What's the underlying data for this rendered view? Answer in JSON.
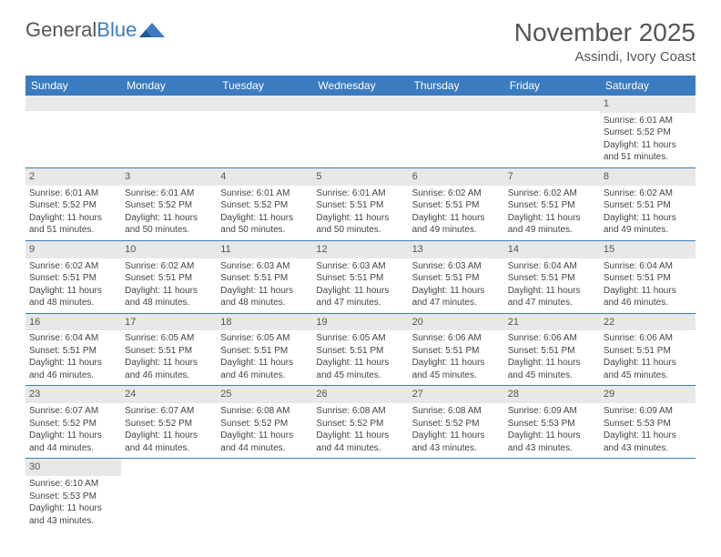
{
  "logo": {
    "text1": "General",
    "text2": "Blue"
  },
  "header": {
    "month_title": "November 2025",
    "location": "Assindi, Ivory Coast"
  },
  "colors": {
    "header_bg": "#3b7bbf",
    "header_text": "#ffffff",
    "day_number_bg": "#e8e8e8",
    "border": "#3b7bbf",
    "text": "#444444",
    "title": "#555555"
  },
  "weekdays": [
    "Sunday",
    "Monday",
    "Tuesday",
    "Wednesday",
    "Thursday",
    "Friday",
    "Saturday"
  ],
  "weeks": [
    [
      null,
      null,
      null,
      null,
      null,
      null,
      {
        "day": "1",
        "sunrise": "Sunrise: 6:01 AM",
        "sunset": "Sunset: 5:52 PM",
        "daylight": "Daylight: 11 hours and 51 minutes."
      }
    ],
    [
      {
        "day": "2",
        "sunrise": "Sunrise: 6:01 AM",
        "sunset": "Sunset: 5:52 PM",
        "daylight": "Daylight: 11 hours and 51 minutes."
      },
      {
        "day": "3",
        "sunrise": "Sunrise: 6:01 AM",
        "sunset": "Sunset: 5:52 PM",
        "daylight": "Daylight: 11 hours and 50 minutes."
      },
      {
        "day": "4",
        "sunrise": "Sunrise: 6:01 AM",
        "sunset": "Sunset: 5:52 PM",
        "daylight": "Daylight: 11 hours and 50 minutes."
      },
      {
        "day": "5",
        "sunrise": "Sunrise: 6:01 AM",
        "sunset": "Sunset: 5:51 PM",
        "daylight": "Daylight: 11 hours and 50 minutes."
      },
      {
        "day": "6",
        "sunrise": "Sunrise: 6:02 AM",
        "sunset": "Sunset: 5:51 PM",
        "daylight": "Daylight: 11 hours and 49 minutes."
      },
      {
        "day": "7",
        "sunrise": "Sunrise: 6:02 AM",
        "sunset": "Sunset: 5:51 PM",
        "daylight": "Daylight: 11 hours and 49 minutes."
      },
      {
        "day": "8",
        "sunrise": "Sunrise: 6:02 AM",
        "sunset": "Sunset: 5:51 PM",
        "daylight": "Daylight: 11 hours and 49 minutes."
      }
    ],
    [
      {
        "day": "9",
        "sunrise": "Sunrise: 6:02 AM",
        "sunset": "Sunset: 5:51 PM",
        "daylight": "Daylight: 11 hours and 48 minutes."
      },
      {
        "day": "10",
        "sunrise": "Sunrise: 6:02 AM",
        "sunset": "Sunset: 5:51 PM",
        "daylight": "Daylight: 11 hours and 48 minutes."
      },
      {
        "day": "11",
        "sunrise": "Sunrise: 6:03 AM",
        "sunset": "Sunset: 5:51 PM",
        "daylight": "Daylight: 11 hours and 48 minutes."
      },
      {
        "day": "12",
        "sunrise": "Sunrise: 6:03 AM",
        "sunset": "Sunset: 5:51 PM",
        "daylight": "Daylight: 11 hours and 47 minutes."
      },
      {
        "day": "13",
        "sunrise": "Sunrise: 6:03 AM",
        "sunset": "Sunset: 5:51 PM",
        "daylight": "Daylight: 11 hours and 47 minutes."
      },
      {
        "day": "14",
        "sunrise": "Sunrise: 6:04 AM",
        "sunset": "Sunset: 5:51 PM",
        "daylight": "Daylight: 11 hours and 47 minutes."
      },
      {
        "day": "15",
        "sunrise": "Sunrise: 6:04 AM",
        "sunset": "Sunset: 5:51 PM",
        "daylight": "Daylight: 11 hours and 46 minutes."
      }
    ],
    [
      {
        "day": "16",
        "sunrise": "Sunrise: 6:04 AM",
        "sunset": "Sunset: 5:51 PM",
        "daylight": "Daylight: 11 hours and 46 minutes."
      },
      {
        "day": "17",
        "sunrise": "Sunrise: 6:05 AM",
        "sunset": "Sunset: 5:51 PM",
        "daylight": "Daylight: 11 hours and 46 minutes."
      },
      {
        "day": "18",
        "sunrise": "Sunrise: 6:05 AM",
        "sunset": "Sunset: 5:51 PM",
        "daylight": "Daylight: 11 hours and 46 minutes."
      },
      {
        "day": "19",
        "sunrise": "Sunrise: 6:05 AM",
        "sunset": "Sunset: 5:51 PM",
        "daylight": "Daylight: 11 hours and 45 minutes."
      },
      {
        "day": "20",
        "sunrise": "Sunrise: 6:06 AM",
        "sunset": "Sunset: 5:51 PM",
        "daylight": "Daylight: 11 hours and 45 minutes."
      },
      {
        "day": "21",
        "sunrise": "Sunrise: 6:06 AM",
        "sunset": "Sunset: 5:51 PM",
        "daylight": "Daylight: 11 hours and 45 minutes."
      },
      {
        "day": "22",
        "sunrise": "Sunrise: 6:06 AM",
        "sunset": "Sunset: 5:51 PM",
        "daylight": "Daylight: 11 hours and 45 minutes."
      }
    ],
    [
      {
        "day": "23",
        "sunrise": "Sunrise: 6:07 AM",
        "sunset": "Sunset: 5:52 PM",
        "daylight": "Daylight: 11 hours and 44 minutes."
      },
      {
        "day": "24",
        "sunrise": "Sunrise: 6:07 AM",
        "sunset": "Sunset: 5:52 PM",
        "daylight": "Daylight: 11 hours and 44 minutes."
      },
      {
        "day": "25",
        "sunrise": "Sunrise: 6:08 AM",
        "sunset": "Sunset: 5:52 PM",
        "daylight": "Daylight: 11 hours and 44 minutes."
      },
      {
        "day": "26",
        "sunrise": "Sunrise: 6:08 AM",
        "sunset": "Sunset: 5:52 PM",
        "daylight": "Daylight: 11 hours and 44 minutes."
      },
      {
        "day": "27",
        "sunrise": "Sunrise: 6:08 AM",
        "sunset": "Sunset: 5:52 PM",
        "daylight": "Daylight: 11 hours and 43 minutes."
      },
      {
        "day": "28",
        "sunrise": "Sunrise: 6:09 AM",
        "sunset": "Sunset: 5:53 PM",
        "daylight": "Daylight: 11 hours and 43 minutes."
      },
      {
        "day": "29",
        "sunrise": "Sunrise: 6:09 AM",
        "sunset": "Sunset: 5:53 PM",
        "daylight": "Daylight: 11 hours and 43 minutes."
      }
    ],
    [
      {
        "day": "30",
        "sunrise": "Sunrise: 6:10 AM",
        "sunset": "Sunset: 5:53 PM",
        "daylight": "Daylight: 11 hours and 43 minutes."
      },
      null,
      null,
      null,
      null,
      null,
      null
    ]
  ]
}
